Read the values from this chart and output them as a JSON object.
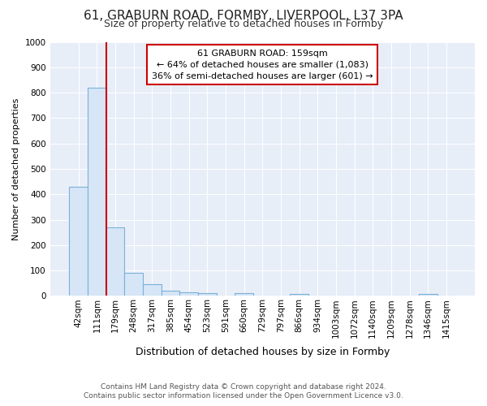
{
  "title1": "61, GRABURN ROAD, FORMBY, LIVERPOOL, L37 3PA",
  "title2": "Size of property relative to detached houses in Formby",
  "xlabel": "Distribution of detached houses by size in Formby",
  "ylabel": "Number of detached properties",
  "footer1": "Contains HM Land Registry data © Crown copyright and database right 2024.",
  "footer2": "Contains public sector information licensed under the Open Government Licence v3.0.",
  "bin_labels": [
    "42sqm",
    "111sqm",
    "179sqm",
    "248sqm",
    "317sqm",
    "385sqm",
    "454sqm",
    "523sqm",
    "591sqm",
    "660sqm",
    "729sqm",
    "797sqm",
    "866sqm",
    "934sqm",
    "1003sqm",
    "1072sqm",
    "1140sqm",
    "1209sqm",
    "1278sqm",
    "1346sqm",
    "1415sqm"
  ],
  "bar_values": [
    430,
    820,
    270,
    90,
    47,
    20,
    13,
    10,
    0,
    10,
    0,
    0,
    7,
    0,
    0,
    0,
    0,
    0,
    0,
    8,
    0
  ],
  "bar_color": "#d6e6f7",
  "bar_edge_color": "#7ab0d8",
  "annotation_line0": "61 GRABURN ROAD: 159sqm",
  "annotation_line1": "← 64% of detached houses are smaller (1,083)",
  "annotation_line2": "36% of semi-detached houses are larger (601) →",
  "annotation_box_color": "#ffffff",
  "annotation_box_edge": "#cc0000",
  "vline_color": "#cc0000",
  "vline_x": 2,
  "ylim": [
    0,
    1000
  ],
  "yticks": [
    0,
    100,
    200,
    300,
    400,
    500,
    600,
    700,
    800,
    900,
    1000
  ],
  "fig_bg_color": "#ffffff",
  "plot_bg_color": "#e8eef8",
  "title1_fontsize": 11,
  "title2_fontsize": 9,
  "xlabel_fontsize": 9,
  "ylabel_fontsize": 8,
  "tick_fontsize": 7.5,
  "footer_fontsize": 6.5
}
